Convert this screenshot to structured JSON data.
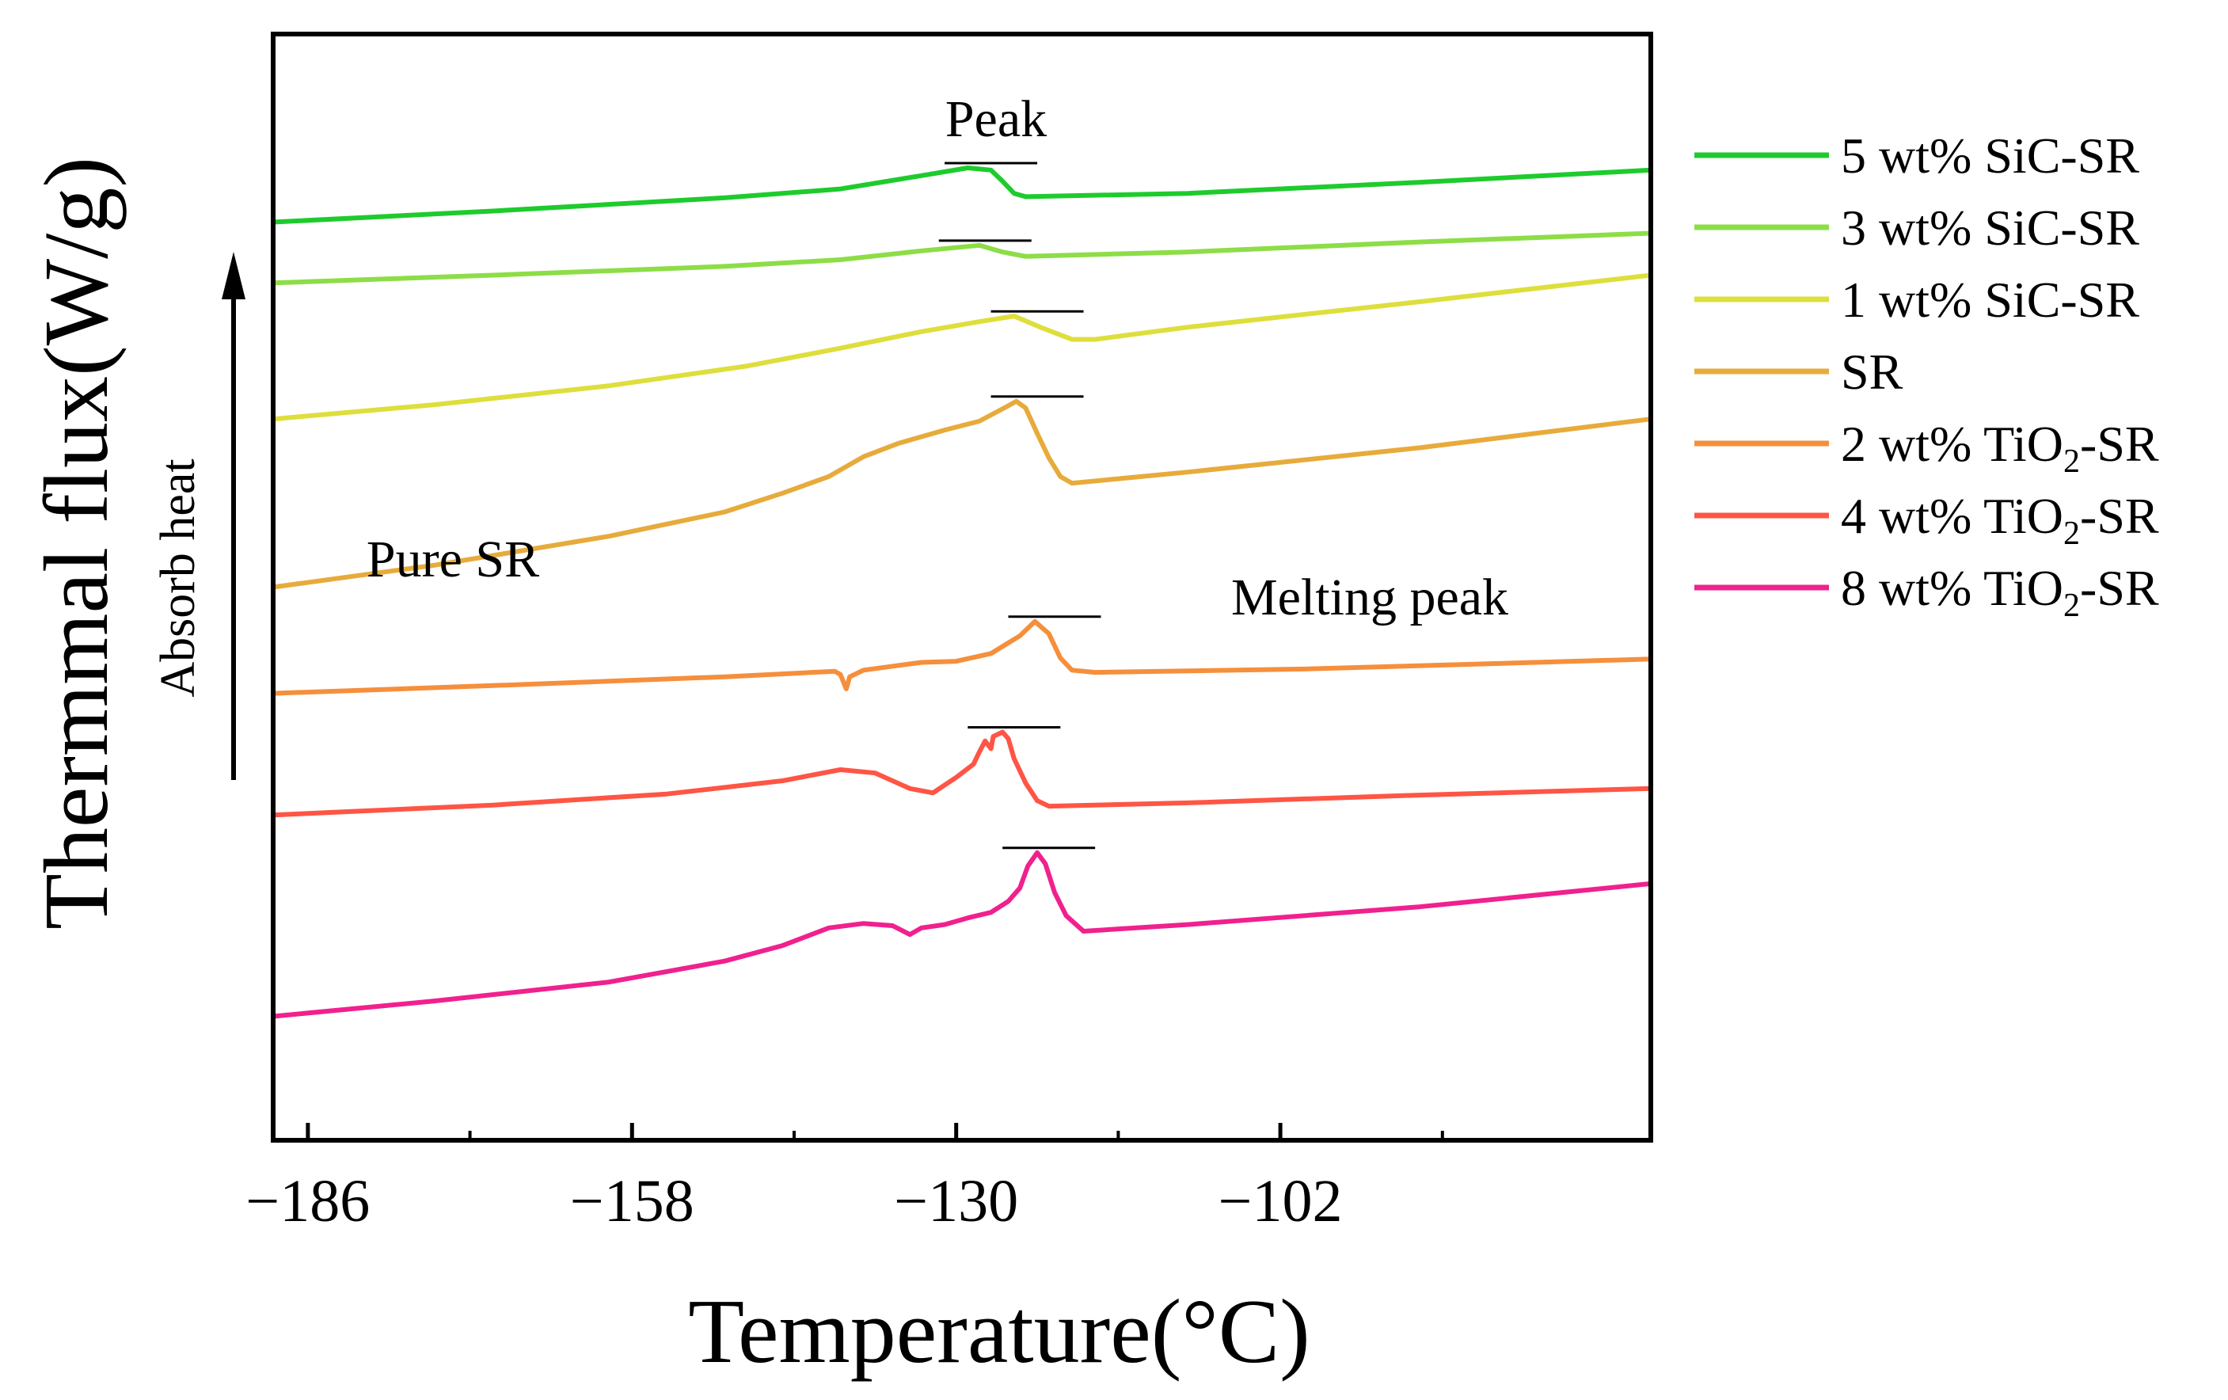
{
  "chart_data": {
    "type": "line",
    "title": "",
    "xlabel": "Temperature(°C)",
    "ylabel": "Thermmal flux(W/g)",
    "xlim": [
      -189,
      -70
    ],
    "ylim": [
      0,
      100
    ],
    "x_ticks": [
      -186,
      -158,
      -130,
      -102
    ],
    "x_tick_labels": [
      "−186",
      "−158",
      "−130",
      "−102"
    ],
    "x_minor_ticks": [
      -172,
      -144,
      -116,
      -88
    ],
    "grid": false,
    "legend_position": "right",
    "annotations": {
      "peak": "Peak",
      "pure_sr": "Pure SR",
      "melting_peak": "Melting peak",
      "absorb_heat": "Absorb heat"
    },
    "series": [
      {
        "name": "5 wt% SiC-SR",
        "label_main": "5 wt% SiC-SR",
        "label_sub": "",
        "label_tail": "",
        "color": "#1ecb2d",
        "peak_bar": [
          -131,
          -123
        ],
        "points": [
          [
            -189,
            83
          ],
          [
            -170,
            84
          ],
          [
            -150,
            85.2
          ],
          [
            -140,
            86
          ],
          [
            -133,
            87.2
          ],
          [
            -129,
            87.9
          ],
          [
            -127,
            87.7
          ],
          [
            -126,
            86.7
          ],
          [
            -125,
            85.6
          ],
          [
            -124,
            85.3
          ],
          [
            -110,
            85.6
          ],
          [
            -90,
            86.6
          ],
          [
            -70,
            87.7
          ]
        ]
      },
      {
        "name": "3 wt% SiC-SR",
        "label_main": "3 wt% SiC-SR",
        "label_sub": "",
        "label_tail": "",
        "color": "#8ddd47",
        "peak_bar": [
          -131.5,
          -123.5
        ],
        "points": [
          [
            -189,
            77.5
          ],
          [
            -170,
            78.2
          ],
          [
            -150,
            79
          ],
          [
            -140,
            79.6
          ],
          [
            -133,
            80.4
          ],
          [
            -128,
            80.9
          ],
          [
            -126,
            80.3
          ],
          [
            -124,
            79.9
          ],
          [
            -110,
            80.3
          ],
          [
            -90,
            81.2
          ],
          [
            -70,
            82
          ]
        ]
      },
      {
        "name": "1 wt% SiC-SR",
        "label_main": "1 wt% SiC-SR",
        "label_sub": "",
        "label_tail": "",
        "color": "#dede3c",
        "peak_bar": [
          -127,
          -119
        ],
        "points": [
          [
            -189,
            65.2
          ],
          [
            -175,
            66.5
          ],
          [
            -160,
            68.2
          ],
          [
            -148,
            70
          ],
          [
            -140,
            71.6
          ],
          [
            -133,
            73.1
          ],
          [
            -128,
            74
          ],
          [
            -125,
            74.5
          ],
          [
            -122.5,
            73.4
          ],
          [
            -120,
            72.4
          ],
          [
            -118,
            72.4
          ],
          [
            -110,
            73.5
          ],
          [
            -90,
            75.8
          ],
          [
            -70,
            78.2
          ]
        ]
      },
      {
        "name": "SR",
        "label_main": "SR",
        "label_sub": "",
        "label_tail": "",
        "color": "#e7ab3c",
        "peak_bar": [
          -127,
          -119
        ],
        "points": [
          [
            -189,
            50
          ],
          [
            -175,
            52
          ],
          [
            -160,
            54.6
          ],
          [
            -150,
            56.8
          ],
          [
            -145,
            58.5
          ],
          [
            -141,
            60
          ],
          [
            -138,
            61.8
          ],
          [
            -135,
            63
          ],
          [
            -131,
            64.2
          ],
          [
            -128,
            65
          ],
          [
            -125.5,
            66.4
          ],
          [
            -124.8,
            66.8
          ],
          [
            -124,
            66.2
          ],
          [
            -123,
            63.9
          ],
          [
            -122,
            61.7
          ],
          [
            -121,
            60
          ],
          [
            -120,
            59.4
          ],
          [
            -110,
            60.4
          ],
          [
            -90,
            62.6
          ],
          [
            -70,
            65.2
          ]
        ]
      },
      {
        "name": "2 wt% TiO₂-SR",
        "label_main": "2 wt% TiO",
        "label_sub": "2",
        "label_tail": "-SR",
        "color": "#f58f3c",
        "peak_bar": [
          -125.5,
          -117.5
        ],
        "points": [
          [
            -189,
            40.4
          ],
          [
            -170,
            41.1
          ],
          [
            -150,
            41.9
          ],
          [
            -140.5,
            42.4
          ],
          [
            -140,
            42.1
          ],
          [
            -139.5,
            40.8
          ],
          [
            -139.2,
            41.9
          ],
          [
            -138,
            42.5
          ],
          [
            -133,
            43.2
          ],
          [
            -130,
            43.3
          ],
          [
            -127,
            44
          ],
          [
            -124.5,
            45.6
          ],
          [
            -123.2,
            46.9
          ],
          [
            -122,
            45.8
          ],
          [
            -121,
            43.6
          ],
          [
            -120,
            42.5
          ],
          [
            -118,
            42.3
          ],
          [
            -100,
            42.6
          ],
          [
            -70,
            43.5
          ]
        ]
      },
      {
        "name": "4 wt% TiO₂-SR",
        "label_main": "4 wt% TiO",
        "label_sub": "2",
        "label_tail": "-SR",
        "color": "#ff5545",
        "peak_bar": [
          -129,
          -121
        ],
        "points": [
          [
            -189,
            29.4
          ],
          [
            -170,
            30.3
          ],
          [
            -155,
            31.3
          ],
          [
            -145,
            32.5
          ],
          [
            -140,
            33.5
          ],
          [
            -137,
            33.2
          ],
          [
            -134,
            31.8
          ],
          [
            -132,
            31.4
          ],
          [
            -130,
            32.8
          ],
          [
            -128.5,
            34
          ],
          [
            -128,
            35.1
          ],
          [
            -127.5,
            36.1
          ],
          [
            -127,
            35.4
          ],
          [
            -126.8,
            36.5
          ],
          [
            -126,
            36.9
          ],
          [
            -125.5,
            36.3
          ],
          [
            -125,
            34.5
          ],
          [
            -124,
            32.3
          ],
          [
            -123,
            30.7
          ],
          [
            -122,
            30.2
          ],
          [
            -110,
            30.5
          ],
          [
            -90,
            31.2
          ],
          [
            -70,
            31.8
          ]
        ]
      },
      {
        "name": "8 wt% TiO₂-SR",
        "label_main": "8 wt% TiO",
        "label_sub": "2",
        "label_tail": "-SR",
        "color": "#f0218e",
        "peak_bar": [
          -126,
          -118
        ],
        "points": [
          [
            -189,
            11.2
          ],
          [
            -175,
            12.6
          ],
          [
            -160,
            14.3
          ],
          [
            -150,
            16.2
          ],
          [
            -145,
            17.6
          ],
          [
            -141,
            19.2
          ],
          [
            -138,
            19.6
          ],
          [
            -135.5,
            19.4
          ],
          [
            -134,
            18.6
          ],
          [
            -133,
            19.2
          ],
          [
            -131,
            19.5
          ],
          [
            -129,
            20.1
          ],
          [
            -127,
            20.6
          ],
          [
            -125.5,
            21.6
          ],
          [
            -124.5,
            22.8
          ],
          [
            -123.8,
            24.8
          ],
          [
            -123,
            26
          ],
          [
            -122.3,
            25
          ],
          [
            -121.5,
            22.4
          ],
          [
            -120.5,
            20.3
          ],
          [
            -119,
            18.9
          ],
          [
            -110,
            19.5
          ],
          [
            -90,
            21.1
          ],
          [
            -70,
            23.2
          ]
        ]
      }
    ]
  }
}
